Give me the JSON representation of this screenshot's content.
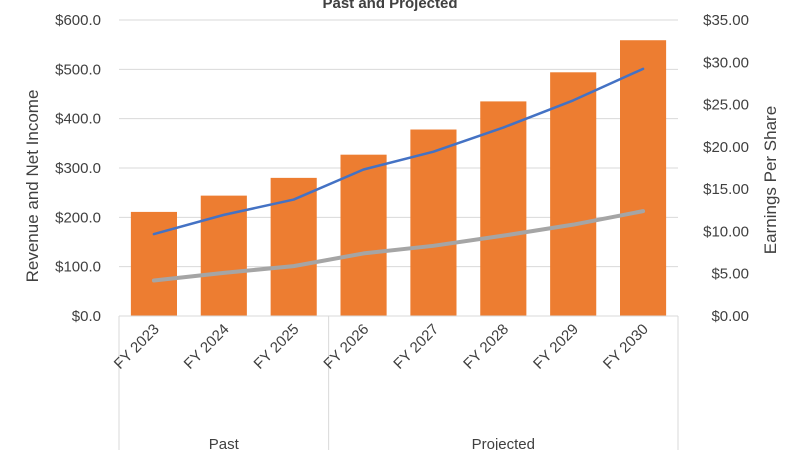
{
  "chart_data": {
    "type": "bar",
    "title": "Past and Projected",
    "categories": [
      "FY 2023",
      "FY 2024",
      "FY 2025",
      "FY 2026",
      "FY 2027",
      "FY 2028",
      "FY 2029",
      "FY 2030"
    ],
    "groups": [
      {
        "label": "Past",
        "count": 3
      },
      {
        "label": "Projected",
        "count": 5
      }
    ],
    "series": [
      {
        "type": "bar",
        "axis": "left",
        "color": "#ED7D31",
        "values": [
          211,
          244,
          280,
          327,
          378,
          435,
          494,
          559
        ]
      },
      {
        "type": "line",
        "axis": "left",
        "color": "#4472C4",
        "values": [
          166,
          205,
          236,
          297,
          333,
          382,
          437,
          501
        ]
      },
      {
        "type": "line",
        "axis": "right",
        "color": "#A5A5A5",
        "values": [
          4.2,
          5.1,
          5.9,
          7.4,
          8.3,
          9.5,
          10.8,
          12.4
        ]
      }
    ],
    "ylabel": "Revenue and Net Income",
    "y2label": "Earnings Per Share",
    "ylim": [
      0,
      600
    ],
    "y2lim": [
      0,
      35
    ],
    "yticks": [
      "$0.0",
      "$100.0",
      "$200.0",
      "$300.0",
      "$400.0",
      "$500.0",
      "$600.0"
    ],
    "y2ticks": [
      "$0.00",
      "$5.00",
      "$10.00",
      "$15.00",
      "$20.00",
      "$25.00",
      "$30.00",
      "$35.00"
    ],
    "grid": true,
    "legend": "none"
  }
}
